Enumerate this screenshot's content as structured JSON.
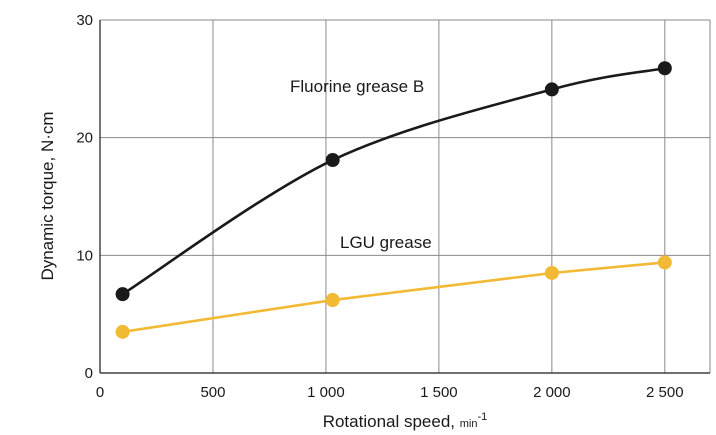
{
  "chart_data": {
    "type": "line",
    "xlabel": "Rotational speed,",
    "xlabel_unit": "min",
    "xlabel_unit_exp": "-1",
    "ylabel": "Dynamic torque, N·cm",
    "xlim": [
      0,
      2700
    ],
    "ylim": [
      0,
      30
    ],
    "x_ticks": [
      0,
      500,
      1000,
      1500,
      2000,
      2500
    ],
    "x_tick_labels": [
      "0",
      "500",
      "1 000",
      "1 500",
      "2 000",
      "2 500"
    ],
    "y_ticks": [
      0,
      10,
      20,
      30
    ],
    "y_tick_labels": [
      "0",
      "10",
      "20",
      "30"
    ],
    "grid": true,
    "series": [
      {
        "name": "Fluorine grease B",
        "color": "#1a1a1a",
        "x": [
          100,
          1030,
          2000,
          2500
        ],
        "y": [
          6.7,
          18.1,
          24.1,
          25.9
        ]
      },
      {
        "name": "LGU grease",
        "color": "#f2b934",
        "x": [
          100,
          1030,
          2000,
          2500
        ],
        "y": [
          3.5,
          6.2,
          8.5,
          9.4
        ]
      }
    ]
  },
  "colors": {
    "grid": "#8a8a8a",
    "axis": "#1a1a1a"
  }
}
